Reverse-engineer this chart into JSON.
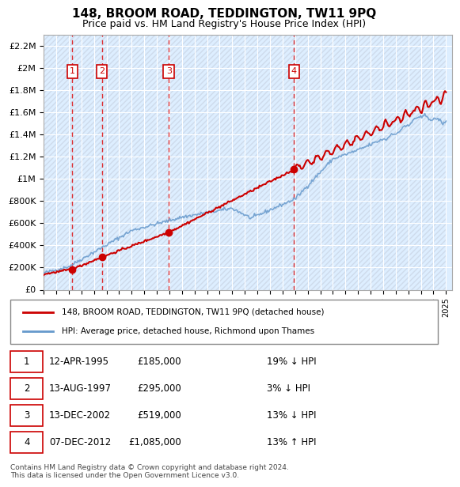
{
  "title": "148, BROOM ROAD, TEDDINGTON, TW11 9PQ",
  "subtitle": "Price paid vs. HM Land Registry's House Price Index (HPI)",
  "ylabel_ticks": [
    "£0",
    "£200K",
    "£400K",
    "£600K",
    "£800K",
    "£1M",
    "£1.2M",
    "£1.4M",
    "£1.6M",
    "£1.8M",
    "£2M",
    "£2.2M"
  ],
  "ytick_values": [
    0,
    200000,
    400000,
    600000,
    800000,
    1000000,
    1200000,
    1400000,
    1600000,
    1800000,
    2000000,
    2200000
  ],
  "ylim": [
    0,
    2300000
  ],
  "xlim_start": 1993.0,
  "xlim_end": 2025.5,
  "background_color": "#ffffff",
  "plot_bg_color": "#ddeeff",
  "hatch_color": "#c0c8d8",
  "grid_color": "#ffffff",
  "sale_dates": [
    1995.28,
    1997.62,
    2002.95,
    2012.92
  ],
  "sale_prices": [
    185000,
    295000,
    519000,
    1085000
  ],
  "sale_labels": [
    "1",
    "2",
    "3",
    "4"
  ],
  "red_line_color": "#cc0000",
  "blue_line_color": "#6699cc",
  "legend_entries": [
    "148, BROOM ROAD, TEDDINGTON, TW11 9PQ (detached house)",
    "HPI: Average price, detached house, Richmond upon Thames"
  ],
  "table_rows": [
    [
      "1",
      "12-APR-1995",
      "£185,000",
      "19% ↓ HPI"
    ],
    [
      "2",
      "13-AUG-1997",
      "£295,000",
      "3% ↓ HPI"
    ],
    [
      "3",
      "13-DEC-2002",
      "£519,000",
      "13% ↓ HPI"
    ],
    [
      "4",
      "07-DEC-2012",
      "£1,085,000",
      "13% ↑ HPI"
    ]
  ],
  "footer": "Contains HM Land Registry data © Crown copyright and database right 2024.\nThis data is licensed under the Open Government Licence v3.0."
}
